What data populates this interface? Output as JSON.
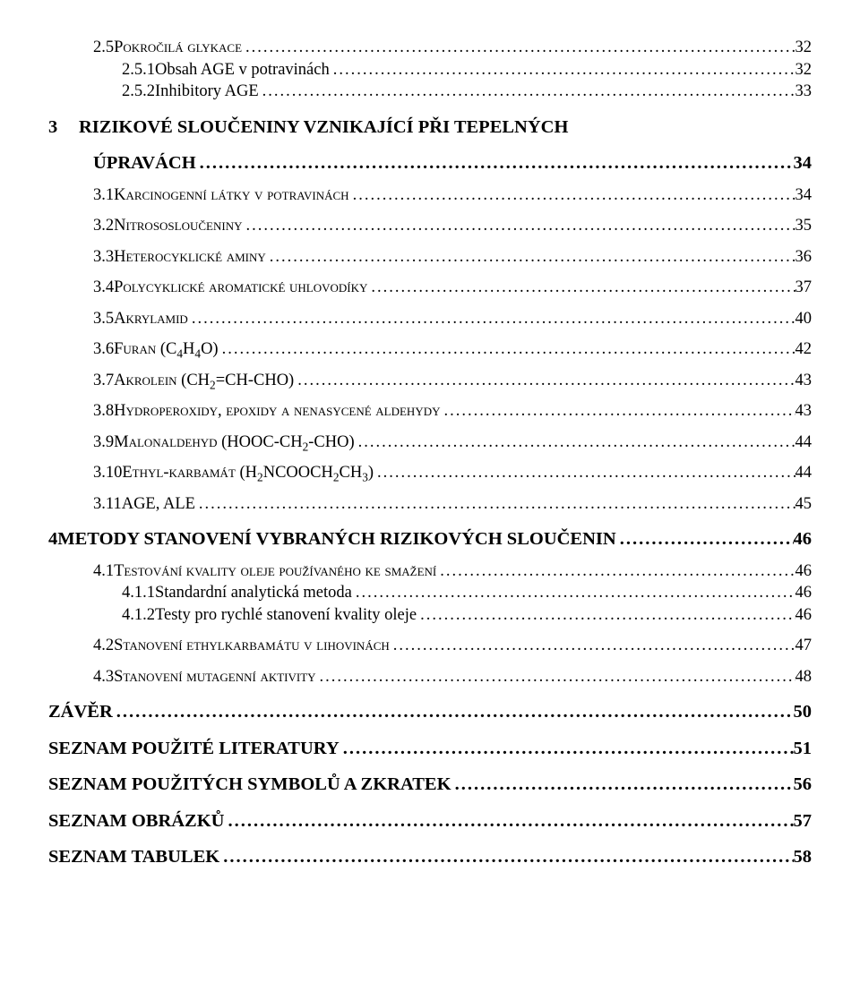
{
  "colors": {
    "text": "#000000",
    "bg": "#ffffff"
  },
  "font": {
    "family": "Times New Roman",
    "chapter_pt": 15.5,
    "section_pt": 14,
    "sub_pt": 14
  },
  "entries": [
    {
      "id": "2.5",
      "level": "sec",
      "num": "2.5",
      "title_sc": "Pokročilá glykace",
      "page": "32"
    },
    {
      "id": "2.5.1",
      "level": "sub",
      "num": "2.5.1",
      "title": "Obsah AGE v potravinách",
      "page": "32"
    },
    {
      "id": "2.5.2",
      "level": "sub",
      "num": "2.5.2",
      "title": "Inhibitory AGE",
      "page": "33"
    },
    {
      "id": "3",
      "level": "chap",
      "num": "3",
      "title": "RIZIKOVÉ SLOUČENINY VZNIKAJÍCÍ PŘI TEPELNÝCH ÚPRAVÁCH",
      "page": "34"
    },
    {
      "id": "3.1",
      "level": "sec",
      "num": "3.1",
      "title_sc": "Karcinogenní látky v potravinách",
      "page": "34"
    },
    {
      "id": "3.2",
      "level": "sec",
      "num": "3.2",
      "title_sc": "Nitrososloučeniny",
      "page": "35"
    },
    {
      "id": "3.3",
      "level": "sec",
      "num": "3.3",
      "title_sc": "Heterocyklické aminy",
      "page": "36"
    },
    {
      "id": "3.4",
      "level": "sec",
      "num": "3.4",
      "title_sc": "Polycyklické aromatické uhlovodíky",
      "page": "37"
    },
    {
      "id": "3.5",
      "level": "sec",
      "num": "3.5",
      "title_sc": "Akrylamid",
      "page": "40"
    },
    {
      "id": "3.6",
      "level": "sec",
      "num": "3.6",
      "title_sc_pre": "Furan ",
      "formula": "C4H4O",
      "page": "42"
    },
    {
      "id": "3.7",
      "level": "sec",
      "num": "3.7",
      "title_sc_pre": "Akrolein ",
      "formula_plain": "CH2=CH-CHO",
      "page": "43"
    },
    {
      "id": "3.8",
      "level": "sec",
      "num": "3.8",
      "title_sc": "Hydroperoxidy, epoxidy a nenasycené aldehydy",
      "page": "43"
    },
    {
      "id": "3.9",
      "level": "sec",
      "num": "3.9",
      "title_sc_pre": "Malonaldehyd ",
      "formula_plain": "HOOC-CH2-CHO",
      "page": "44"
    },
    {
      "id": "3.10",
      "level": "sec",
      "num": "3.10",
      "title_sc_pre": "Ethyl-karbamát ",
      "formula_plain": "H2NCOOCH2CH3",
      "page": "44"
    },
    {
      "id": "3.11",
      "level": "sec",
      "num": "3.11",
      "title": "AGE, ALE",
      "page": "45"
    },
    {
      "id": "4",
      "level": "chap",
      "num": "4",
      "title": "METODY STANOVENÍ VYBRANÝCH RIZIKOVÝCH SLOUČENIN",
      "page": "46"
    },
    {
      "id": "4.1",
      "level": "sec",
      "num": "4.1",
      "title_sc": "Testování kvality oleje používaného ke smažení",
      "page": "46"
    },
    {
      "id": "4.1.1",
      "level": "sub",
      "num": "4.1.1",
      "title": "Standardní analytická metoda",
      "page": "46"
    },
    {
      "id": "4.1.2",
      "level": "sub",
      "num": "4.1.2",
      "title": "Testy pro rychlé stanovení kvality oleje",
      "page": "46"
    },
    {
      "id": "4.2",
      "level": "sec",
      "num": "4.2",
      "title_sc": "Stanovení ethylkarbamátu v lihovinách",
      "page": "47"
    },
    {
      "id": "4.3",
      "level": "sec",
      "num": "4.3",
      "title_sc": "Stanovení mutagenní aktivity",
      "page": "48"
    },
    {
      "id": "zaver",
      "level": "back",
      "title": "ZÁVĚR",
      "page": "50"
    },
    {
      "id": "lit",
      "level": "back",
      "title": "SEZNAM POUŽITÉ LITERATURY",
      "page": "51"
    },
    {
      "id": "symb",
      "level": "back",
      "title": "SEZNAM POUŽITÝCH SYMBOLŮ A ZKRATEK",
      "page": "56"
    },
    {
      "id": "obr",
      "level": "back",
      "title": "SEZNAM OBRÁZKŮ",
      "page": "57"
    },
    {
      "id": "tab",
      "level": "back",
      "title": "SEZNAM TABULEK",
      "page": "58"
    }
  ],
  "special_chapter_wrap": {
    "3": {
      "line1": "RIZIKOVÉ SLOUČENINY VZNIKAJÍCÍ PŘI TEPELNÝCH",
      "line2": "ÚPRAVÁCH"
    }
  }
}
